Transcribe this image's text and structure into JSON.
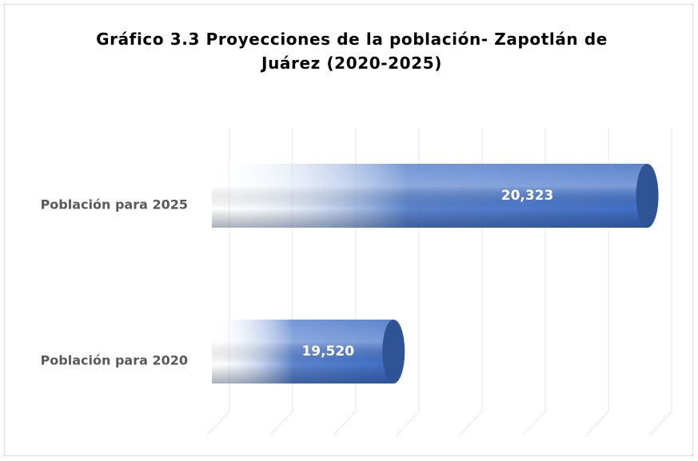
{
  "chart_data": {
    "type": "bar",
    "orientation": "horizontal",
    "title": "Gráfico 3.3 Proyecciones de la población- Zapotlán de Juárez (2020-2025)",
    "categories": [
      "Población para 2025",
      "Población para 2020"
    ],
    "values": [
      20323,
      19520
    ],
    "value_labels": [
      "20,323",
      "19,520"
    ],
    "color": "#3f6fc6",
    "xlim": [
      18950,
      20400
    ],
    "xticks": [
      19000,
      19200,
      19400,
      19600,
      19800,
      20000,
      20200,
      20400
    ],
    "grid": true
  }
}
